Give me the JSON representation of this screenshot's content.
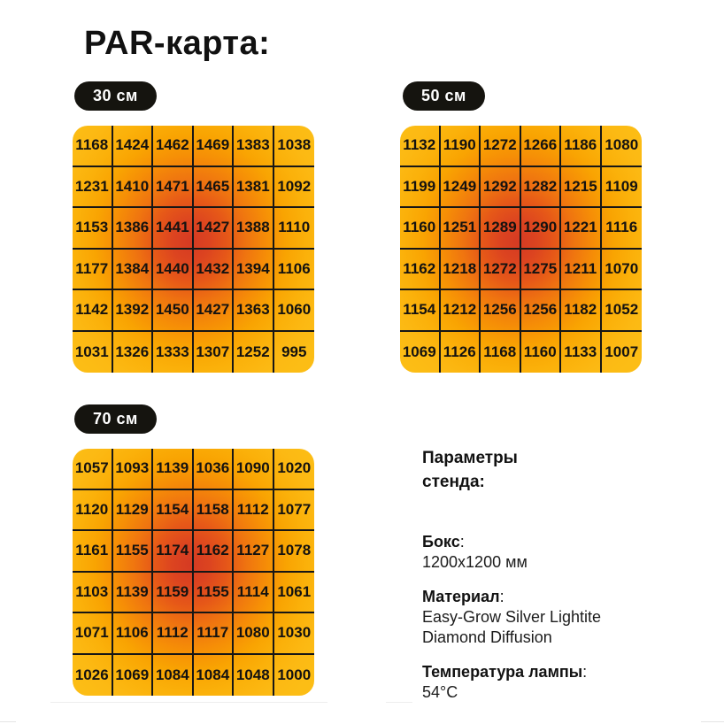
{
  "page": {
    "title": "PAR-карта:"
  },
  "chart_data": [
    {
      "type": "heatmap",
      "title": "30 см",
      "values": [
        [
          1168,
          1424,
          1462,
          1469,
          1383,
          1038
        ],
        [
          1231,
          1410,
          1471,
          1465,
          1381,
          1092
        ],
        [
          1153,
          1386,
          1441,
          1427,
          1388,
          1110
        ],
        [
          1177,
          1384,
          1440,
          1432,
          1394,
          1106
        ],
        [
          1142,
          1392,
          1450,
          1427,
          1363,
          1060
        ],
        [
          1031,
          1326,
          1333,
          1307,
          1252,
          995
        ]
      ]
    },
    {
      "type": "heatmap",
      "title": "50 см",
      "values": [
        [
          1132,
          1190,
          1272,
          1266,
          1186,
          1080
        ],
        [
          1199,
          1249,
          1292,
          1282,
          1215,
          1109
        ],
        [
          1160,
          1251,
          1289,
          1290,
          1221,
          1116
        ],
        [
          1162,
          1218,
          1272,
          1275,
          1211,
          1070
        ],
        [
          1154,
          1212,
          1256,
          1256,
          1182,
          1052
        ],
        [
          1069,
          1126,
          1168,
          1160,
          1133,
          1007
        ]
      ]
    },
    {
      "type": "heatmap",
      "title": "70 см",
      "values": [
        [
          1057,
          1093,
          1139,
          1036,
          1090,
          1020
        ],
        [
          1120,
          1129,
          1154,
          1158,
          1112,
          1077
        ],
        [
          1161,
          1155,
          1174,
          1162,
          1127,
          1078
        ],
        [
          1103,
          1139,
          1159,
          1155,
          1114,
          1061
        ],
        [
          1071,
          1106,
          1112,
          1117,
          1080,
          1030
        ],
        [
          1026,
          1069,
          1084,
          1084,
          1048,
          1000
        ]
      ]
    }
  ],
  "params": {
    "heading": "Параметры стенда:",
    "items": [
      {
        "label": "Бокс",
        "colon": ":",
        "value": "1200x1200 мм"
      },
      {
        "label": "Материал",
        "colon": ":",
        "value": "Easy-Grow Silver Lightite Diamond Diffusion"
      },
      {
        "label": "Температура лампы",
        "colon": ":",
        "value": "54°C"
      }
    ]
  },
  "colors": {
    "badge_bg": "#15140f",
    "badge_text": "#ffffff",
    "heat_center": "#d53a23",
    "heat_mid": "#ef7410",
    "heat_outer": "#fcbd15",
    "grid_line": "#161616",
    "text": "#121212"
  }
}
